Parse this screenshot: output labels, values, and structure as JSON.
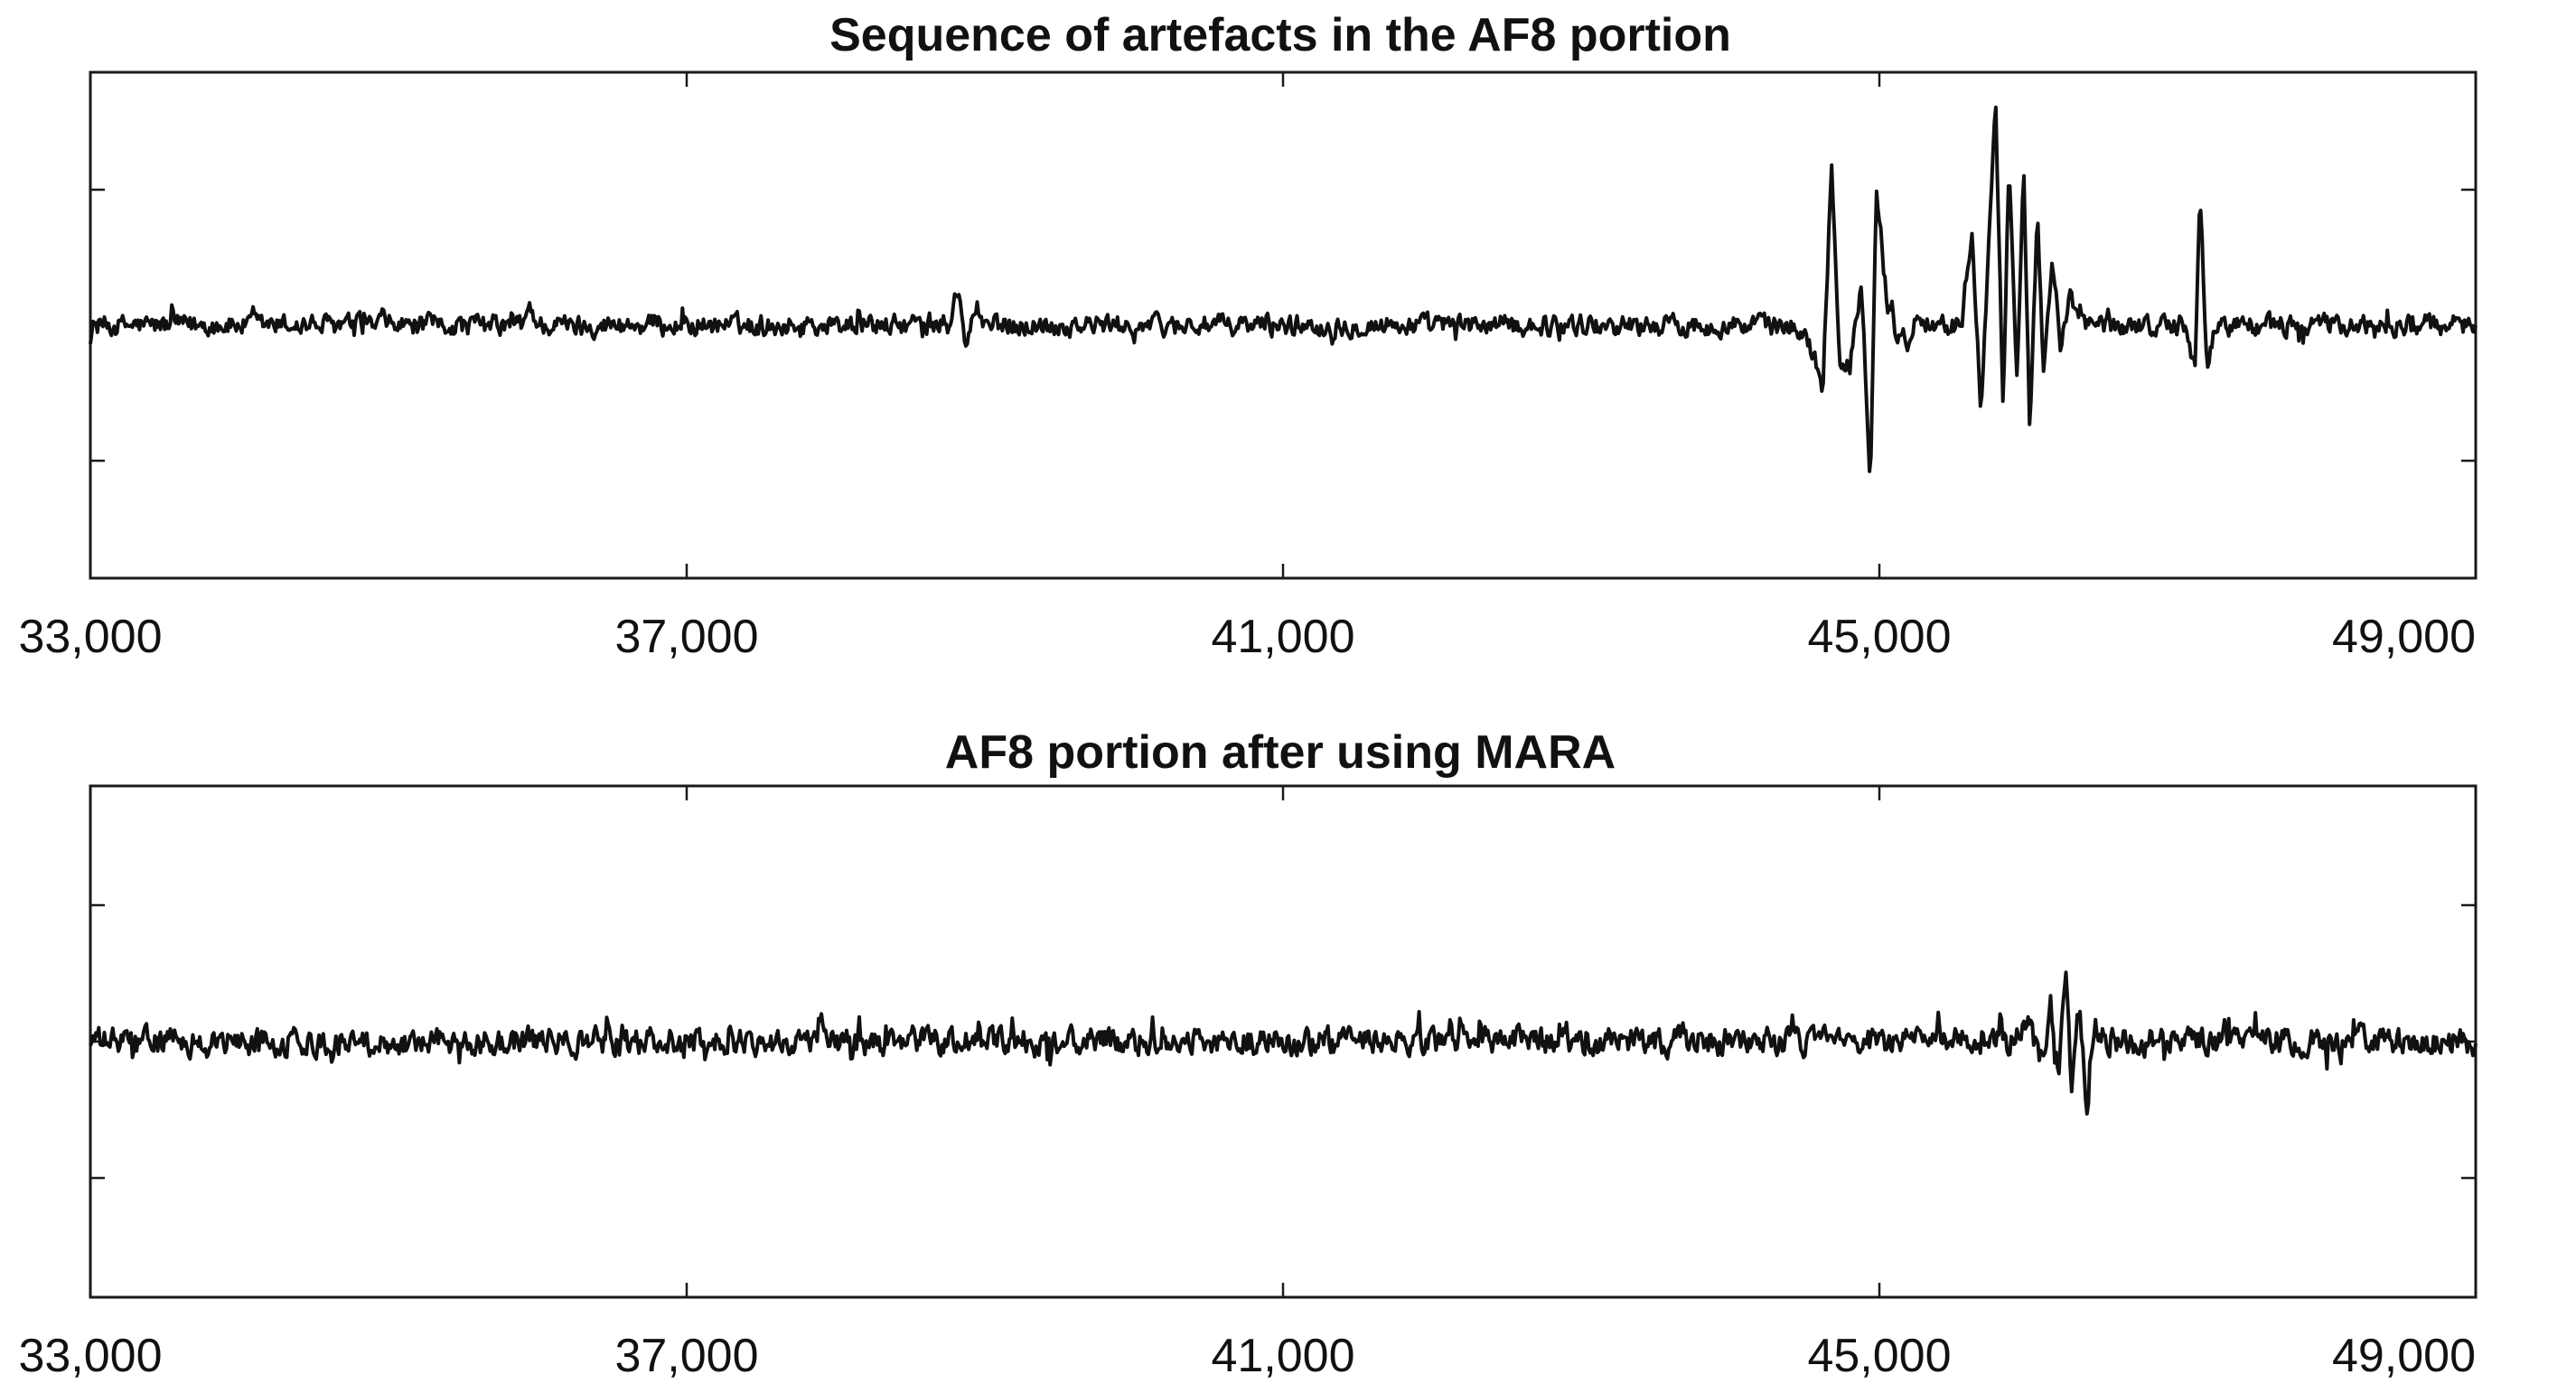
{
  "chart_data": [
    {
      "type": "line",
      "title": "Sequence of artefacts in the AF8 portion",
      "xlabel": "",
      "ylabel": "",
      "xlim": [
        33000,
        49000
      ],
      "ylim": [
        -1,
        1
      ],
      "x_ticks": [
        "33,000",
        "37,000",
        "41,000",
        "45,000",
        "49,000"
      ],
      "y_ticks": [
        -0.5,
        0,
        0.5
      ],
      "grid": false,
      "line_color": "#111111",
      "series": [
        {
          "noise_amplitude": 0.035,
          "points": [
            [
              33000,
              0
            ],
            [
              35900,
              0
            ],
            [
              35950,
              0.08
            ],
            [
              36000,
              0
            ],
            [
              38750,
              0
            ],
            [
              38820,
              0.14
            ],
            [
              38870,
              -0.1
            ],
            [
              38920,
              0.05
            ],
            [
              38980,
              0
            ],
            [
              44300,
              0
            ],
            [
              44500,
              -0.02
            ],
            [
              44620,
              -0.24
            ],
            [
              44680,
              0.65
            ],
            [
              44740,
              -0.2
            ],
            [
              44810,
              -0.1
            ],
            [
              44880,
              0.15
            ],
            [
              44940,
              -0.6
            ],
            [
              44980,
              0.53
            ],
            [
              45050,
              0.1
            ],
            [
              45120,
              -0.05
            ],
            [
              45200,
              -0.05
            ],
            [
              45250,
              0.05
            ],
            [
              45350,
              0
            ],
            [
              45550,
              0
            ],
            [
              45620,
              0.4
            ],
            [
              45680,
              -0.3
            ],
            [
              45730,
              0.25
            ],
            [
              45780,
              0.87
            ],
            [
              45830,
              -0.35
            ],
            [
              45870,
              0.65
            ],
            [
              45920,
              -0.25
            ],
            [
              45970,
              0.6
            ],
            [
              46010,
              -0.45
            ],
            [
              46060,
              0.5
            ],
            [
              46100,
              -0.2
            ],
            [
              46160,
              0.28
            ],
            [
              46220,
              -0.1
            ],
            [
              46280,
              0.1
            ],
            [
              46350,
              0
            ],
            [
              47050,
              0
            ],
            [
              47120,
              -0.18
            ],
            [
              47150,
              0.55
            ],
            [
              47200,
              -0.2
            ],
            [
              47250,
              0
            ],
            [
              49000,
              0
            ]
          ]
        }
      ]
    },
    {
      "type": "line",
      "title": "AF8 portion after using MARA",
      "xlabel": "",
      "ylabel": "",
      "xlim": [
        33000,
        49000
      ],
      "ylim": [
        -1,
        1
      ],
      "x_ticks": [
        "33,000",
        "37,000",
        "41,000",
        "45,000",
        "49,000"
      ],
      "y_ticks": [
        -0.5,
        0,
        0.5
      ],
      "grid": false,
      "line_color": "#111111",
      "series": [
        {
          "noise_amplitude": 0.045,
          "points": [
            [
              33000,
              0
            ],
            [
              45900,
              0
            ],
            [
              46000,
              0.06
            ],
            [
              46080,
              -0.08
            ],
            [
              46150,
              0.14
            ],
            [
              46200,
              -0.12
            ],
            [
              46250,
              0.26
            ],
            [
              46290,
              -0.2
            ],
            [
              46340,
              0.14
            ],
            [
              46390,
              -0.24
            ],
            [
              46450,
              0.06
            ],
            [
              46500,
              -0.04
            ],
            [
              46560,
              0
            ],
            [
              49000,
              0
            ]
          ]
        }
      ]
    }
  ]
}
